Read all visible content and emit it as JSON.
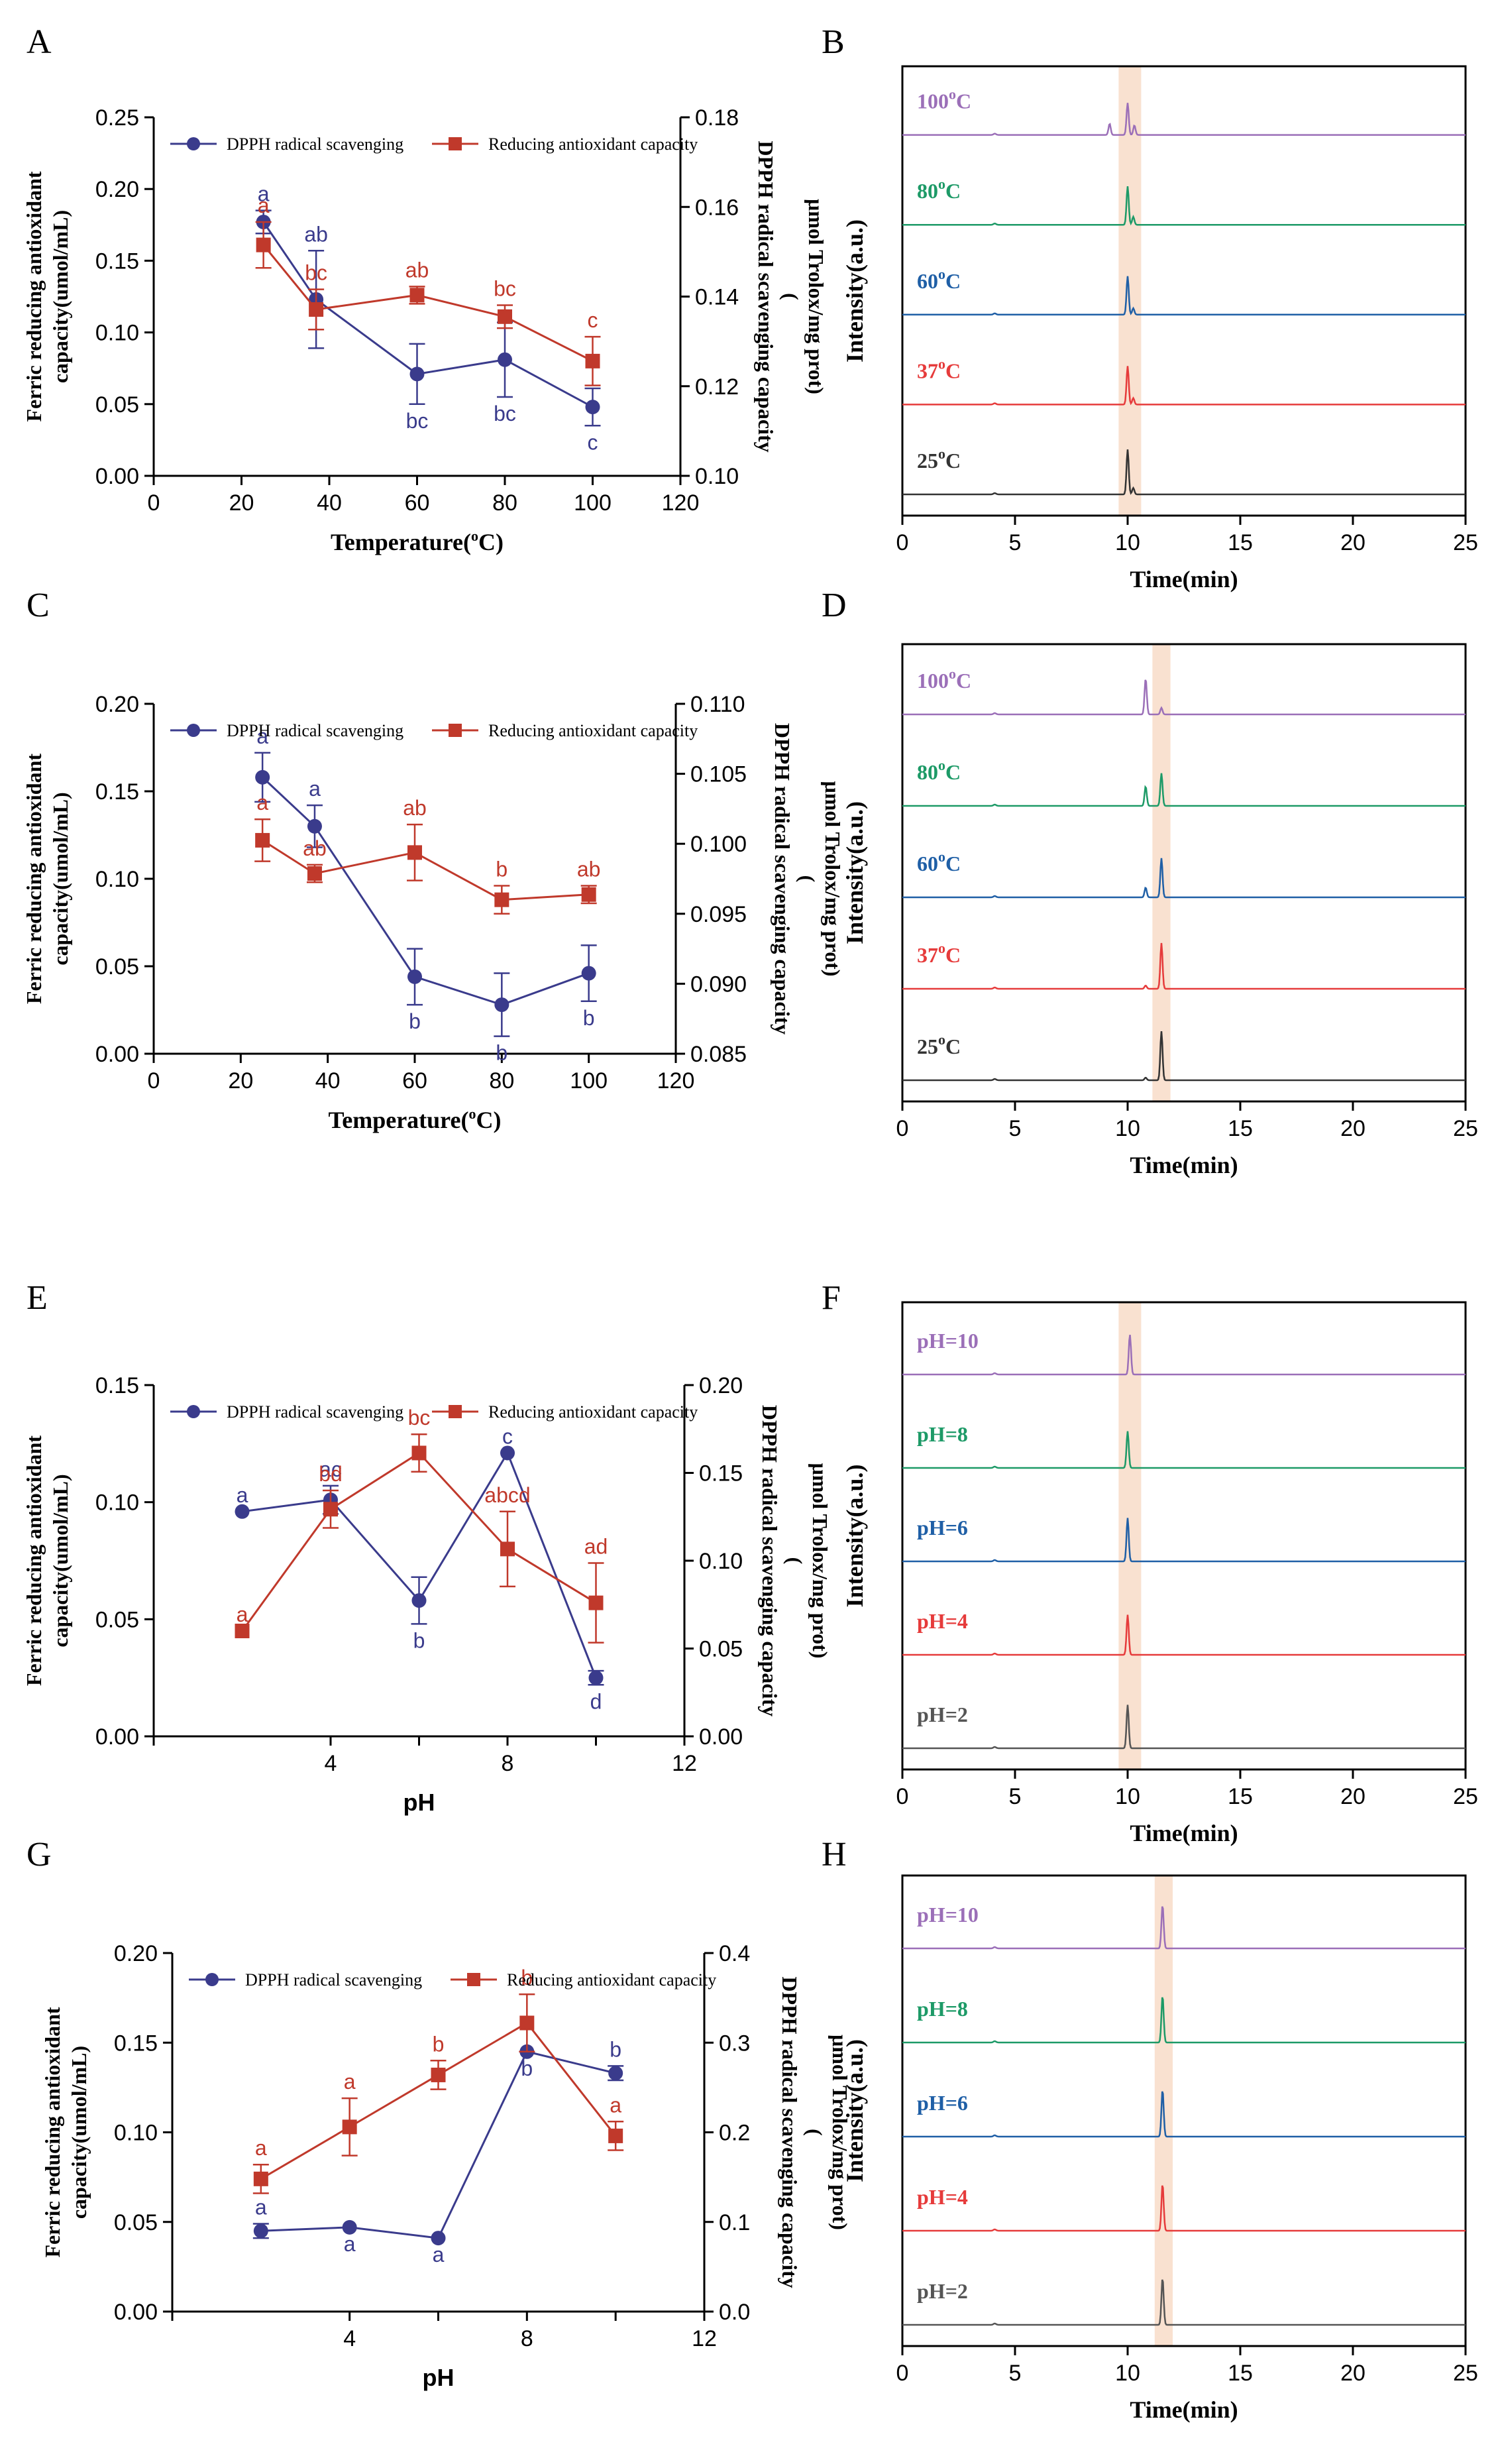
{
  "chart_data": [
    {
      "panel": "A",
      "type": "line",
      "xlabel": "Temperature(°C)",
      "xlabel_parts": [
        "Temperature(",
        "o",
        "C)"
      ],
      "ylabel_left": [
        "Ferric reducing antioxidant",
        "capacity(umol/mL)"
      ],
      "ylabel_right": [
        "DPPH radical scavenging capacity",
        "(",
        "μmol Trolox/mg prot)"
      ],
      "xlim": [
        0,
        120
      ],
      "xticks": [
        "0",
        "20",
        "40",
        "60",
        "80",
        "100",
        "120"
      ],
      "ylim_left": [
        0,
        0.25
      ],
      "yticks_left": [
        "0.00",
        "0.05",
        "0.10",
        "0.15",
        "0.20",
        "0.25"
      ],
      "ylim_right": [
        0.1,
        0.18
      ],
      "yticks_right": [
        "0.10",
        "0.12",
        "0.14",
        "0.16",
        "0.18"
      ],
      "legend": [
        "DPPH radical scavenging",
        "Reducing antioxidant capacity"
      ],
      "x": [
        25,
        37,
        60,
        80,
        100
      ],
      "series": [
        {
          "name": "DPPH radical scavenging",
          "axis": "left",
          "color": "#3a3b8c",
          "marker": "circle",
          "values": [
            0.177,
            0.123,
            0.071,
            0.081,
            0.048
          ],
          "errors": [
            0.008,
            0.034,
            0.021,
            0.026,
            0.013
          ],
          "labels": [
            "a",
            "ab",
            "bc",
            "bc",
            "c"
          ]
        },
        {
          "name": "Reducing antioxidant capacity",
          "axis": "left",
          "color": "#c0392b",
          "marker": "square",
          "values": [
            0.161,
            0.116,
            0.126,
            0.111,
            0.08
          ],
          "errors": [
            0.016,
            0.014,
            0.006,
            0.008,
            0.017
          ],
          "labels": [
            "a",
            "bc",
            "ab",
            "bc",
            "c"
          ]
        }
      ]
    },
    {
      "panel": "B",
      "type": "chromatogram",
      "xlabel": "Time(min)",
      "ylabel": "Intensity(a.u.)",
      "xlim": [
        0,
        25
      ],
      "xticks": [
        "0",
        "5",
        "10",
        "15",
        "20",
        "25"
      ],
      "highlight_range": [
        9.6,
        10.6
      ],
      "traces": [
        {
          "name": "100°C",
          "parts": [
            "100",
            "o",
            "C"
          ],
          "color": "#9b6fb8",
          "peaks": [
            [
              9.2,
              0.35
            ],
            [
              10.0,
              1.0
            ],
            [
              10.3,
              0.3
            ]
          ]
        },
        {
          "name": "80°C",
          "parts": [
            "80",
            "o",
            "C"
          ],
          "color": "#1d9a67",
          "peaks": [
            [
              10.0,
              1.2
            ],
            [
              10.25,
              0.25
            ]
          ]
        },
        {
          "name": "60°C",
          "parts": [
            "60",
            "o",
            "C"
          ],
          "color": "#1f5fa6",
          "peaks": [
            [
              10.0,
              1.2
            ],
            [
              10.25,
              0.2
            ]
          ]
        },
        {
          "name": "37°C",
          "parts": [
            "37",
            "o",
            "C"
          ],
          "color": "#e63b3b",
          "peaks": [
            [
              10.0,
              1.2
            ],
            [
              10.25,
              0.2
            ]
          ]
        },
        {
          "name": "25°C",
          "parts": [
            "25",
            "o",
            "C"
          ],
          "color": "#333333",
          "peaks": [
            [
              10.0,
              1.4
            ],
            [
              10.25,
              0.2
            ]
          ]
        }
      ]
    },
    {
      "panel": "C",
      "type": "line",
      "xlabel": "Temperature(°C)",
      "xlabel_parts": [
        "Temperature(",
        "o",
        "C)"
      ],
      "ylabel_left": [
        "Ferric reducing antioxidant",
        "capacity(umol/mL)"
      ],
      "ylabel_right": [
        "DPPH radical scavenging capacity",
        "(",
        "μmol Trolox/mg prot)"
      ],
      "xlim": [
        0,
        120
      ],
      "xticks": [
        "0",
        "20",
        "40",
        "60",
        "80",
        "100",
        "120"
      ],
      "ylim_left": [
        0,
        0.2
      ],
      "yticks_left": [
        "0.00",
        "0.05",
        "0.10",
        "0.15",
        "0.20"
      ],
      "ylim_right": [
        0.085,
        0.11
      ],
      "yticks_right": [
        "0.085",
        "0.090",
        "0.095",
        "0.100",
        "0.105",
        "0.110"
      ],
      "legend": [
        "DPPH radical scavenging",
        "Reducing antioxidant capacity"
      ],
      "x": [
        25,
        37,
        60,
        80,
        100
      ],
      "series": [
        {
          "name": "DPPH radical scavenging",
          "axis": "left",
          "color": "#3a3b8c",
          "marker": "circle",
          "values": [
            0.158,
            0.13,
            0.044,
            0.028,
            0.046
          ],
          "errors": [
            0.014,
            0.012,
            0.016,
            0.018,
            0.016
          ],
          "labels": [
            "a",
            "a",
            "b",
            "b",
            "b"
          ]
        },
        {
          "name": "Reducing antioxidant capacity",
          "axis": "left",
          "color": "#c0392b",
          "marker": "square",
          "values": [
            0.122,
            0.103,
            0.115,
            0.088,
            0.091
          ],
          "errors": [
            0.012,
            0.005,
            0.016,
            0.008,
            0.005
          ],
          "labels": [
            "a",
            "ab",
            "ab",
            "b",
            "ab"
          ]
        }
      ]
    },
    {
      "panel": "D",
      "type": "chromatogram",
      "xlabel": "Time(min)",
      "ylabel": "Intensity(a.u.)",
      "xlim": [
        0,
        25
      ],
      "xticks": [
        "0",
        "5",
        "10",
        "15",
        "20",
        "25"
      ],
      "highlight_range": [
        11.1,
        11.9
      ],
      "traces": [
        {
          "name": "100°C",
          "parts": [
            "100",
            "o",
            "C"
          ],
          "color": "#9b6fb8",
          "peaks": [
            [
              10.8,
              1.1
            ],
            [
              11.5,
              0.2
            ]
          ]
        },
        {
          "name": "80°C",
          "parts": [
            "80",
            "o",
            "C"
          ],
          "color": "#1d9a67",
          "peaks": [
            [
              10.8,
              0.6
            ],
            [
              11.5,
              1.0
            ]
          ]
        },
        {
          "name": "60°C",
          "parts": [
            "60",
            "o",
            "C"
          ],
          "color": "#1f5fa6",
          "peaks": [
            [
              10.8,
              0.3
            ],
            [
              11.5,
              1.2
            ]
          ]
        },
        {
          "name": "37°C",
          "parts": [
            "37",
            "o",
            "C"
          ],
          "color": "#e63b3b",
          "peaks": [
            [
              10.8,
              0.1
            ],
            [
              11.5,
              1.4
            ]
          ]
        },
        {
          "name": "25°C",
          "parts": [
            "25",
            "o",
            "C"
          ],
          "color": "#333333",
          "peaks": [
            [
              10.8,
              0.08
            ],
            [
              11.5,
              1.5
            ]
          ]
        }
      ]
    },
    {
      "panel": "E",
      "type": "line",
      "xlabel": "pH",
      "xlabel_parts": [
        "pH"
      ],
      "ylabel_left": [
        "Ferric reducing antioxidant",
        "capacity(umol/mL)"
      ],
      "ylabel_right": [
        "DPPH radical scavenging capacity",
        "(",
        "μmol Trolox/mg prot)"
      ],
      "xlim": [
        0,
        12
      ],
      "xticks": [
        "",
        "4",
        "",
        "8",
        "",
        "12"
      ],
      "xtick_values": [
        0,
        4,
        6,
        8,
        10,
        12
      ],
      "ylim_left": [
        0,
        0.15
      ],
      "yticks_left": [
        "0.00",
        "0.05",
        "0.10",
        "0.15"
      ],
      "ylim_right": [
        0,
        0.2
      ],
      "yticks_right": [
        "0.00",
        "0.05",
        "0.10",
        "0.15",
        "0.20"
      ],
      "legend": [
        "DPPH radical scavenging",
        "Reducing antioxidant capacity"
      ],
      "x": [
        2,
        4,
        6,
        8,
        10
      ],
      "series": [
        {
          "name": "DPPH radical scavenging",
          "axis": "left",
          "color": "#3a3b8c",
          "marker": "circle",
          "values": [
            0.096,
            0.101,
            0.058,
            0.121,
            0.025
          ],
          "errors": [
            0.0,
            0.006,
            0.01,
            0.0,
            0.003
          ],
          "labels": [
            "a",
            "ac",
            "b",
            "c",
            "d"
          ]
        },
        {
          "name": "Reducing antioxidant capacity",
          "axis": "left",
          "color": "#c0392b",
          "marker": "square",
          "values": [
            0.045,
            0.097,
            0.121,
            0.08,
            0.057
          ],
          "errors": [
            0.0,
            0.008,
            0.008,
            0.016,
            0.017
          ],
          "labels": [
            "a",
            "bd",
            "bc",
            "abcd",
            "ad"
          ]
        }
      ]
    },
    {
      "panel": "F",
      "type": "chromatogram",
      "xlabel": "Time(min)",
      "ylabel": "Intensity(a.u.)",
      "xlim": [
        0,
        25
      ],
      "xticks": [
        "0",
        "5",
        "10",
        "15",
        "20",
        "25"
      ],
      "highlight_range": [
        9.6,
        10.6
      ],
      "traces": [
        {
          "name": "pH=10",
          "parts": [
            "pH=10"
          ],
          "color": "#9b6fb8",
          "peaks": [
            [
              10.1,
              1.2
            ]
          ]
        },
        {
          "name": "pH=8",
          "parts": [
            "pH=8"
          ],
          "color": "#1d9a67",
          "peaks": [
            [
              10.0,
              1.1
            ]
          ]
        },
        {
          "name": "pH=6",
          "parts": [
            "pH=6"
          ],
          "color": "#1f5fa6",
          "peaks": [
            [
              10.0,
              1.3
            ]
          ]
        },
        {
          "name": "pH=4",
          "parts": [
            "pH=4"
          ],
          "color": "#e63b3b",
          "peaks": [
            [
              10.0,
              1.2
            ]
          ]
        },
        {
          "name": "pH=2",
          "parts": [
            "pH=2"
          ],
          "color": "#555555",
          "peaks": [
            [
              10.0,
              1.3
            ]
          ]
        }
      ]
    },
    {
      "panel": "G",
      "type": "line",
      "xlabel": "pH",
      "xlabel_parts": [
        "pH"
      ],
      "ylabel_left": [
        "Ferric reducing antioxidant",
        "capacity(umol/mL)"
      ],
      "ylabel_right": [
        "DPPH radical scavenging capacity",
        "(",
        "μmol Trolox/mg prot)"
      ],
      "xlim": [
        0,
        12
      ],
      "xticks": [
        "",
        "4",
        "",
        "8",
        "",
        "12"
      ],
      "xtick_values": [
        0,
        4,
        6,
        8,
        10,
        12
      ],
      "ylim_left": [
        0,
        0.2
      ],
      "yticks_left": [
        "0.00",
        "0.05",
        "0.10",
        "0.15",
        "0.20"
      ],
      "ylim_right": [
        0,
        0.4
      ],
      "yticks_right": [
        "0.0",
        "0.1",
        "0.2",
        "0.3",
        "0.4"
      ],
      "legend": [
        "DPPH radical scavenging",
        "Reducing antioxidant capacity"
      ],
      "x": [
        2,
        4,
        6,
        8,
        10
      ],
      "series": [
        {
          "name": "DPPH radical scavenging",
          "axis": "left",
          "color": "#3a3b8c",
          "marker": "circle",
          "values": [
            0.045,
            0.047,
            0.041,
            0.145,
            0.133
          ],
          "errors": [
            0.004,
            0.0,
            0.0,
            0.0,
            0.004
          ],
          "labels": [
            "a",
            "a",
            "a",
            "b",
            "b"
          ]
        },
        {
          "name": "Reducing antioxidant capacity",
          "axis": "left",
          "color": "#c0392b",
          "marker": "square",
          "values": [
            0.074,
            0.103,
            0.132,
            0.161,
            0.098
          ],
          "errors": [
            0.008,
            0.016,
            0.008,
            0.016,
            0.008
          ],
          "labels": [
            "a",
            "a",
            "b",
            "b",
            "a"
          ]
        }
      ]
    },
    {
      "panel": "H",
      "type": "chromatogram",
      "xlabel": "Time(min)",
      "ylabel": "Intensity(a.u.)",
      "xlim": [
        0,
        25
      ],
      "xticks": [
        "0",
        "5",
        "10",
        "15",
        "20",
        "25"
      ],
      "highlight_range": [
        11.2,
        12.0
      ],
      "traces": [
        {
          "name": "pH=10",
          "parts": [
            "pH=10"
          ],
          "color": "#9b6fb8",
          "peaks": [
            [
              11.55,
              1.3
            ]
          ]
        },
        {
          "name": "pH=8",
          "parts": [
            "pH=8"
          ],
          "color": "#1d9a67",
          "peaks": [
            [
              11.55,
              1.4
            ]
          ]
        },
        {
          "name": "pH=6",
          "parts": [
            "pH=6"
          ],
          "color": "#1f5fa6",
          "peaks": [
            [
              11.55,
              1.4
            ]
          ]
        },
        {
          "name": "pH=4",
          "parts": [
            "pH=4"
          ],
          "color": "#e63b3b",
          "peaks": [
            [
              11.55,
              1.4
            ]
          ]
        },
        {
          "name": "pH=2",
          "parts": [
            "pH=2"
          ],
          "color": "#555555",
          "peaks": [
            [
              11.55,
              1.4
            ]
          ]
        }
      ]
    }
  ]
}
